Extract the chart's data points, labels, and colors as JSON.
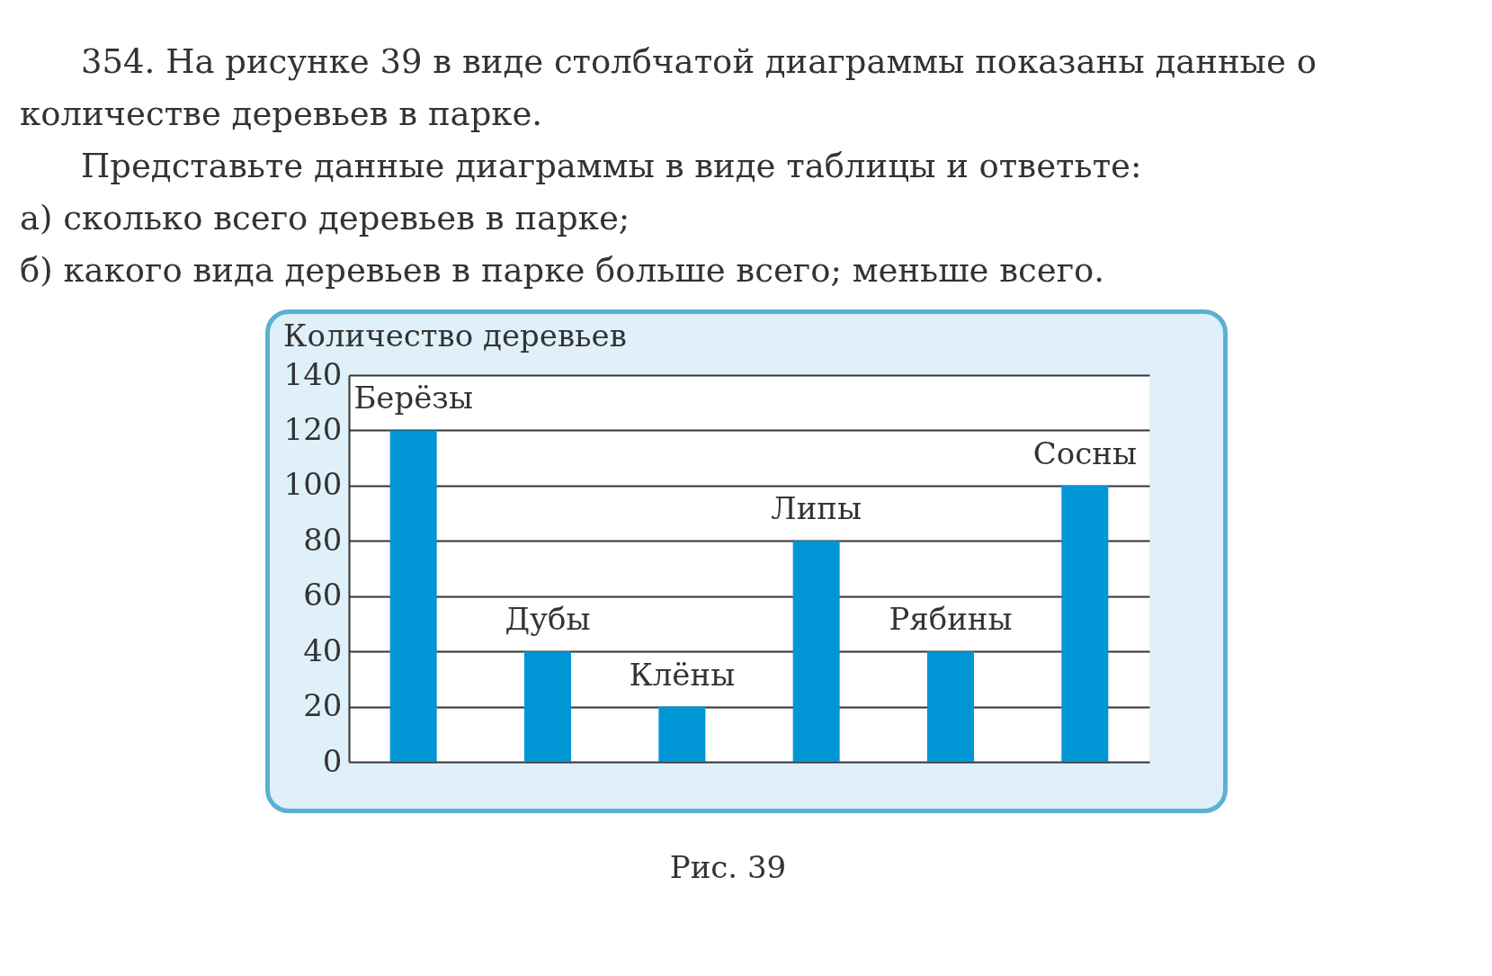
{
  "chart_data": {
    "type": "bar",
    "title": "Количество деревьев",
    "categories": [
      "Берёзы",
      "Дубы",
      "Клёны",
      "Липы",
      "Рябины",
      "Сосны"
    ],
    "values": [
      120,
      40,
      20,
      80,
      40,
      100
    ],
    "color": "#0096d6",
    "ylim": [
      0,
      140
    ],
    "yticks": [
      0,
      20,
      40,
      60,
      80,
      100,
      120,
      140
    ],
    "grid": "y",
    "tick_labels": "y",
    "annotations": [
      "354. На рисунке 39 в виде столбчатой диаграммы показаны данные о количестве деревьев в парке.",
      "Представьте данные диаграммы в виде таблицы и ответьте:",
      "а) сколько всего деревьев в парке;",
      "б) какого вида деревьев в парке больше всего; меньше всего.",
      "Рис. 39"
    ]
  }
}
